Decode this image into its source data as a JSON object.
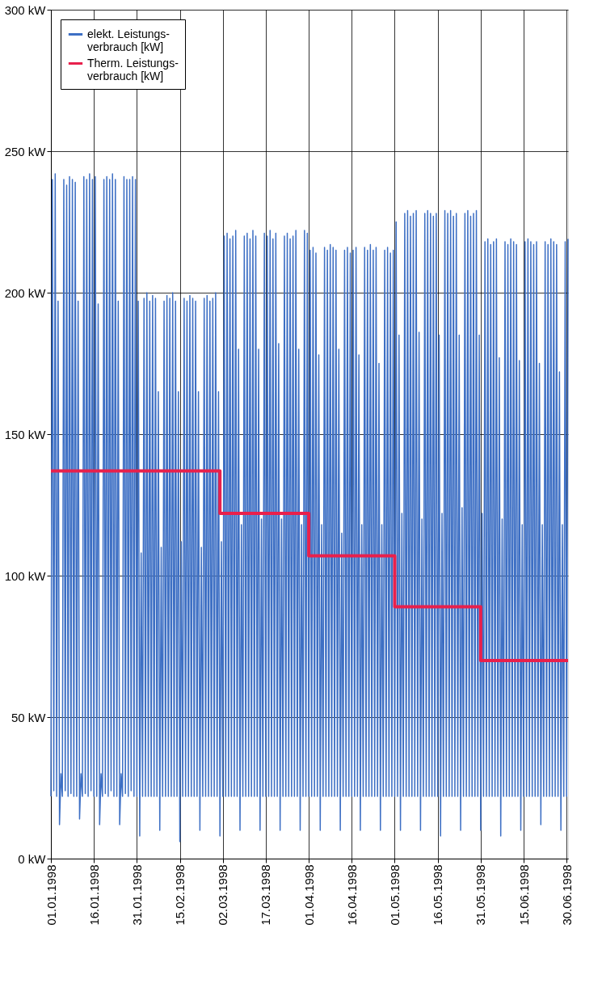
{
  "chart_data": {
    "type": "line",
    "xlim": [
      "1998-01-01",
      "1998-06-30T12:00"
    ],
    "xticks": [
      {
        "value": "1998-01-01",
        "label": "01.01.1998"
      },
      {
        "value": "1998-01-16",
        "label": "16.01.1998"
      },
      {
        "value": "1998-01-31",
        "label": "31.01.1998"
      },
      {
        "value": "1998-02-15",
        "label": "15.02.1998"
      },
      {
        "value": "1998-03-02",
        "label": "02.03.1998"
      },
      {
        "value": "1998-03-17",
        "label": "17.03.1998"
      },
      {
        "value": "1998-04-01",
        "label": "01.04.1998"
      },
      {
        "value": "1998-04-16",
        "label": "16.04.1998"
      },
      {
        "value": "1998-05-01",
        "label": "01.05.1998"
      },
      {
        "value": "1998-05-16",
        "label": "16.05.1998"
      },
      {
        "value": "1998-05-31",
        "label": "31.05.1998"
      },
      {
        "value": "1998-06-15",
        "label": "15.06.1998"
      },
      {
        "value": "1998-06-30",
        "label": "30.06.1998"
      }
    ],
    "ylim": [
      0,
      300
    ],
    "yticks": [
      {
        "value": 0,
        "label": "0 kW"
      },
      {
        "value": 50,
        "label": "50 kW"
      },
      {
        "value": 100,
        "label": "100 kW"
      },
      {
        "value": 150,
        "label": "150 kW"
      },
      {
        "value": 200,
        "label": "200 kW"
      },
      {
        "value": 250,
        "label": "250 kW"
      },
      {
        "value": 300,
        "label": "300 kW"
      }
    ],
    "grid": true,
    "legend": "left",
    "marker": "none",
    "line_style": "solid",
    "series": [
      {
        "name": "elekt. Leistungs-\nverbrauch  [kW]",
        "type": "line",
        "color": "#3d6fc4",
        "x": [
          "1998-01-01T00:00",
          "1998-01-01T12:00",
          "1998-01-02T00:00",
          "1998-01-02T12:00",
          "1998-01-03T00:00",
          "1998-01-03T12:00",
          "1998-01-04T00:00",
          "1998-01-04T12:00",
          "1998-01-05T00:00",
          "1998-01-05T12:00",
          "1998-01-06T00:00",
          "1998-01-06T12:00",
          "1998-01-07T00:00",
          "1998-01-07T12:00",
          "1998-01-08T00:00",
          "1998-01-08T12:00",
          "1998-01-09T00:00",
          "1998-01-09T12:00",
          "1998-01-10T00:00",
          "1998-01-10T12:00",
          "1998-01-11T00:00",
          "1998-01-11T12:00",
          "1998-01-12T00:00",
          "1998-01-12T12:00",
          "1998-01-13T00:00",
          "1998-01-13T12:00",
          "1998-01-14T00:00",
          "1998-01-14T12:00",
          "1998-01-15T00:00",
          "1998-01-15T12:00",
          "1998-01-16T00:00",
          "1998-01-16T12:00",
          "1998-01-17T00:00",
          "1998-01-17T12:00",
          "1998-01-18T00:00",
          "1998-01-18T12:00",
          "1998-01-19T00:00",
          "1998-01-19T12:00",
          "1998-01-20T00:00",
          "1998-01-20T12:00",
          "1998-01-21T00:00",
          "1998-01-21T12:00",
          "1998-01-22T00:00",
          "1998-01-22T12:00",
          "1998-01-23T00:00",
          "1998-01-23T12:00",
          "1998-01-24T00:00",
          "1998-01-24T12:00",
          "1998-01-25T00:00",
          "1998-01-25T12:00",
          "1998-01-26T00:00",
          "1998-01-26T12:00",
          "1998-01-27T00:00",
          "1998-01-27T12:00",
          "1998-01-28T00:00",
          "1998-01-28T12:00",
          "1998-01-29T00:00",
          "1998-01-29T12:00",
          "1998-01-30T00:00",
          "1998-01-30T12:00",
          "1998-01-31T00:00",
          "1998-01-31T12:00",
          "1998-02-01T00:00",
          "1998-02-01T12:00",
          "1998-02-02T00:00",
          "1998-02-02T12:00",
          "1998-02-03T00:00",
          "1998-02-03T12:00",
          "1998-02-04T00:00",
          "1998-02-04T12:00",
          "1998-02-05T00:00",
          "1998-02-05T12:00",
          "1998-02-06T00:00",
          "1998-02-06T12:00",
          "1998-02-07T00:00",
          "1998-02-07T12:00",
          "1998-02-08T00:00",
          "1998-02-08T12:00",
          "1998-02-09T00:00",
          "1998-02-09T12:00",
          "1998-02-10T00:00",
          "1998-02-10T12:00",
          "1998-02-11T00:00",
          "1998-02-11T12:00",
          "1998-02-12T00:00",
          "1998-02-12T12:00",
          "1998-02-13T00:00",
          "1998-02-13T12:00",
          "1998-02-14T00:00",
          "1998-02-14T12:00",
          "1998-02-15T00:00",
          "1998-02-15T12:00",
          "1998-02-16T00:00",
          "1998-02-16T12:00",
          "1998-02-17T00:00",
          "1998-02-17T12:00",
          "1998-02-18T00:00",
          "1998-02-18T12:00",
          "1998-02-19T00:00",
          "1998-02-19T12:00",
          "1998-02-20T00:00",
          "1998-02-20T12:00",
          "1998-02-21T00:00",
          "1998-02-21T12:00",
          "1998-02-22T00:00",
          "1998-02-22T12:00",
          "1998-02-23T00:00",
          "1998-02-23T12:00",
          "1998-02-24T00:00",
          "1998-02-24T12:00",
          "1998-02-25T00:00",
          "1998-02-25T12:00",
          "1998-02-26T00:00",
          "1998-02-26T12:00",
          "1998-02-27T00:00",
          "1998-02-27T12:00",
          "1998-02-28T00:00",
          "1998-02-28T12:00",
          "1998-03-01T00:00",
          "1998-03-01T12:00",
          "1998-03-02T00:00",
          "1998-03-02T12:00",
          "1998-03-03T00:00",
          "1998-03-03T12:00",
          "1998-03-04T00:00",
          "1998-03-04T12:00",
          "1998-03-05T00:00",
          "1998-03-05T12:00",
          "1998-03-06T00:00",
          "1998-03-06T12:00",
          "1998-03-07T00:00",
          "1998-03-07T12:00",
          "1998-03-08T00:00",
          "1998-03-08T12:00",
          "1998-03-09T00:00",
          "1998-03-09T12:00",
          "1998-03-10T00:00",
          "1998-03-10T12:00",
          "1998-03-11T00:00",
          "1998-03-11T12:00",
          "1998-03-12T00:00",
          "1998-03-12T12:00",
          "1998-03-13T00:00",
          "1998-03-13T12:00",
          "1998-03-14T00:00",
          "1998-03-14T12:00",
          "1998-03-15T00:00",
          "1998-03-15T12:00",
          "1998-03-16T00:00",
          "1998-03-16T12:00",
          "1998-03-17T00:00",
          "1998-03-17T12:00",
          "1998-03-18T00:00",
          "1998-03-18T12:00",
          "1998-03-19T00:00",
          "1998-03-19T12:00",
          "1998-03-20T00:00",
          "1998-03-20T12:00",
          "1998-03-21T00:00",
          "1998-03-21T12:00",
          "1998-03-22T00:00",
          "1998-03-22T12:00",
          "1998-03-23T00:00",
          "1998-03-23T12:00",
          "1998-03-24T00:00",
          "1998-03-24T12:00",
          "1998-03-25T00:00",
          "1998-03-25T12:00",
          "1998-03-26T00:00",
          "1998-03-26T12:00",
          "1998-03-27T00:00",
          "1998-03-27T12:00",
          "1998-03-28T00:00",
          "1998-03-28T12:00",
          "1998-03-29T00:00",
          "1998-03-29T12:00",
          "1998-03-30T00:00",
          "1998-03-30T12:00",
          "1998-03-31T00:00",
          "1998-03-31T12:00",
          "1998-04-01T00:00",
          "1998-04-01T12:00",
          "1998-04-02T00:00",
          "1998-04-02T12:00",
          "1998-04-03T00:00",
          "1998-04-03T12:00",
          "1998-04-04T00:00",
          "1998-04-04T12:00",
          "1998-04-05T00:00",
          "1998-04-05T12:00",
          "1998-04-06T00:00",
          "1998-04-06T12:00",
          "1998-04-07T00:00",
          "1998-04-07T12:00",
          "1998-04-08T00:00",
          "1998-04-08T12:00",
          "1998-04-09T00:00",
          "1998-04-09T12:00",
          "1998-04-10T00:00",
          "1998-04-10T12:00",
          "1998-04-11T00:00",
          "1998-04-11T12:00",
          "1998-04-12T00:00",
          "1998-04-12T12:00",
          "1998-04-13T00:00",
          "1998-04-13T12:00",
          "1998-04-14T00:00",
          "1998-04-14T12:00",
          "1998-04-15T00:00",
          "1998-04-15T12:00",
          "1998-04-16T00:00",
          "1998-04-16T12:00",
          "1998-04-17T00:00",
          "1998-04-17T12:00",
          "1998-04-18T00:00",
          "1998-04-18T12:00",
          "1998-04-19T00:00",
          "1998-04-19T12:00",
          "1998-04-20T00:00",
          "1998-04-20T12:00",
          "1998-04-21T00:00",
          "1998-04-21T12:00",
          "1998-04-22T00:00",
          "1998-04-22T12:00",
          "1998-04-23T00:00",
          "1998-04-23T12:00",
          "1998-04-24T00:00",
          "1998-04-24T12:00",
          "1998-04-25T00:00",
          "1998-04-25T12:00",
          "1998-04-26T00:00",
          "1998-04-26T12:00",
          "1998-04-27T00:00",
          "1998-04-27T12:00",
          "1998-04-28T00:00",
          "1998-04-28T12:00",
          "1998-04-29T00:00",
          "1998-04-29T12:00",
          "1998-04-30T00:00",
          "1998-04-30T12:00",
          "1998-05-01T00:00",
          "1998-05-01T12:00",
          "1998-05-02T00:00",
          "1998-05-02T12:00",
          "1998-05-03T00:00",
          "1998-05-03T12:00",
          "1998-05-04T00:00",
          "1998-05-04T12:00",
          "1998-05-05T00:00",
          "1998-05-05T12:00",
          "1998-05-06T00:00",
          "1998-05-06T12:00",
          "1998-05-07T00:00",
          "1998-05-07T12:00",
          "1998-05-08T00:00",
          "1998-05-08T12:00",
          "1998-05-09T00:00",
          "1998-05-09T12:00",
          "1998-05-10T00:00",
          "1998-05-10T12:00",
          "1998-05-11T00:00",
          "1998-05-11T12:00",
          "1998-05-12T00:00",
          "1998-05-12T12:00",
          "1998-05-13T00:00",
          "1998-05-13T12:00",
          "1998-05-14T00:00",
          "1998-05-14T12:00",
          "1998-05-15T00:00",
          "1998-05-15T12:00",
          "1998-05-16T00:00",
          "1998-05-16T12:00",
          "1998-05-17T00:00",
          "1998-05-17T12:00",
          "1998-05-18T00:00",
          "1998-05-18T12:00",
          "1998-05-19T00:00",
          "1998-05-19T12:00",
          "1998-05-20T00:00",
          "1998-05-20T12:00",
          "1998-05-21T00:00",
          "1998-05-21T12:00",
          "1998-05-22T00:00",
          "1998-05-22T12:00",
          "1998-05-23T00:00",
          "1998-05-23T12:00",
          "1998-05-24T00:00",
          "1998-05-24T12:00",
          "1998-05-25T00:00",
          "1998-05-25T12:00",
          "1998-05-26T00:00",
          "1998-05-26T12:00",
          "1998-05-27T00:00",
          "1998-05-27T12:00",
          "1998-05-28T00:00",
          "1998-05-28T12:00",
          "1998-05-29T00:00",
          "1998-05-29T12:00",
          "1998-05-30T00:00",
          "1998-05-30T12:00",
          "1998-05-31T00:00",
          "1998-05-31T12:00",
          "1998-06-01T00:00",
          "1998-06-01T12:00",
          "1998-06-02T00:00",
          "1998-06-02T12:00",
          "1998-06-03T00:00",
          "1998-06-03T12:00",
          "1998-06-04T00:00",
          "1998-06-04T12:00",
          "1998-06-05T00:00",
          "1998-06-05T12:00",
          "1998-06-06T00:00",
          "1998-06-06T12:00",
          "1998-06-07T00:00",
          "1998-06-07T12:00",
          "1998-06-08T00:00",
          "1998-06-08T12:00",
          "1998-06-09T00:00",
          "1998-06-09T12:00",
          "1998-06-10T00:00",
          "1998-06-10T12:00",
          "1998-06-11T00:00",
          "1998-06-11T12:00",
          "1998-06-12T00:00",
          "1998-06-12T12:00",
          "1998-06-13T00:00",
          "1998-06-13T12:00",
          "1998-06-14T00:00",
          "1998-06-14T12:00",
          "1998-06-15T00:00",
          "1998-06-15T12:00",
          "1998-06-16T00:00",
          "1998-06-16T12:00",
          "1998-06-17T00:00",
          "1998-06-17T12:00",
          "1998-06-18T00:00",
          "1998-06-18T12:00",
          "1998-06-19T00:00",
          "1998-06-19T12:00",
          "1998-06-20T00:00",
          "1998-06-20T12:00",
          "1998-06-21T00:00",
          "1998-06-21T12:00",
          "1998-06-22T00:00",
          "1998-06-22T12:00",
          "1998-06-23T00:00",
          "1998-06-23T12:00",
          "1998-06-24T00:00",
          "1998-06-24T12:00",
          "1998-06-25T00:00",
          "1998-06-25T12:00",
          "1998-06-26T00:00",
          "1998-06-26T12:00",
          "1998-06-27T00:00",
          "1998-06-27T12:00",
          "1998-06-28T00:00",
          "1998-06-28T12:00",
          "1998-06-29T00:00",
          "1998-06-29T12:00",
          "1998-06-30T00:00",
          "1998-06-30T12:00"
        ],
        "values": [
          22,
          240,
          24,
          242,
          22,
          197,
          12,
          30,
          22,
          240,
          24,
          238,
          22,
          241,
          23,
          240,
          22,
          239,
          22,
          197,
          14,
          30,
          22,
          241,
          23,
          240,
          22,
          242,
          24,
          240,
          22,
          241,
          22,
          196,
          12,
          30,
          22,
          240,
          23,
          241,
          22,
          240,
          24,
          242,
          22,
          240,
          22,
          197,
          12,
          30,
          22,
          241,
          23,
          240,
          22,
          240,
          24,
          241,
          22,
          240,
          22,
          197,
          8,
          108,
          22,
          198,
          22,
          200,
          22,
          197,
          22,
          199,
          22,
          198,
          22,
          165,
          10,
          110,
          22,
          197,
          22,
          199,
          22,
          198,
          22,
          200,
          22,
          197,
          22,
          165,
          6,
          112,
          22,
          198,
          22,
          197,
          22,
          199,
          22,
          198,
          22,
          197,
          22,
          165,
          10,
          110,
          22,
          198,
          22,
          199,
          22,
          197,
          22,
          198,
          22,
          200,
          22,
          165,
          8,
          112,
          22,
          220,
          22,
          221,
          22,
          219,
          22,
          220,
          22,
          222,
          22,
          180,
          10,
          118,
          22,
          220,
          22,
          221,
          22,
          219,
          22,
          222,
          22,
          220,
          22,
          180,
          10,
          120,
          22,
          221,
          22,
          220,
          22,
          222,
          22,
          219,
          22,
          221,
          22,
          182,
          10,
          120,
          22,
          220,
          22,
          221,
          22,
          219,
          22,
          220,
          22,
          222,
          22,
          180,
          10,
          118,
          22,
          222,
          22,
          221,
          22,
          215,
          22,
          216,
          22,
          214,
          22,
          178,
          10,
          118,
          22,
          216,
          22,
          215,
          22,
          217,
          22,
          216,
          22,
          215,
          22,
          180,
          10,
          115,
          22,
          215,
          22,
          216,
          22,
          214,
          22,
          215,
          22,
          216,
          22,
          178,
          10,
          118,
          22,
          216,
          22,
          215,
          22,
          217,
          22,
          215,
          22,
          216,
          22,
          175,
          10,
          118,
          22,
          215,
          22,
          216,
          22,
          214,
          22,
          215,
          22,
          225,
          22,
          185,
          10,
          122,
          22,
          228,
          22,
          229,
          22,
          227,
          22,
          228,
          22,
          229,
          22,
          186,
          10,
          120,
          22,
          228,
          22,
          229,
          22,
          228,
          22,
          227,
          22,
          228,
          22,
          185,
          8,
          122,
          22,
          229,
          22,
          228,
          22,
          229,
          22,
          227,
          22,
          228,
          22,
          185,
          10,
          124,
          22,
          228,
          22,
          229,
          22,
          227,
          22,
          228,
          22,
          229,
          22,
          185,
          10,
          122,
          22,
          218,
          22,
          219,
          22,
          217,
          22,
          218,
          22,
          219,
          22,
          177,
          8,
          120,
          22,
          218,
          22,
          217,
          22,
          219,
          22,
          218,
          22,
          217,
          22,
          176,
          10,
          118,
          22,
          218,
          22,
          219,
          22,
          218,
          22,
          217,
          22,
          218,
          22,
          175,
          12,
          118,
          22,
          218,
          22,
          217,
          22,
          219,
          22,
          218,
          22,
          217,
          22,
          172,
          10,
          118,
          22,
          218,
          22,
          219
        ]
      },
      {
        "name": "Therm. Leistungs-\nverbrauch [kW]",
        "type": "step",
        "color": "#e8204c",
        "x": [
          "1998-01-01",
          "1998-03-01",
          "1998-04-01",
          "1998-05-01",
          "1998-05-31",
          "1998-06-30T12:00"
        ],
        "values": [
          137,
          122,
          107,
          89,
          70,
          70
        ]
      }
    ]
  }
}
